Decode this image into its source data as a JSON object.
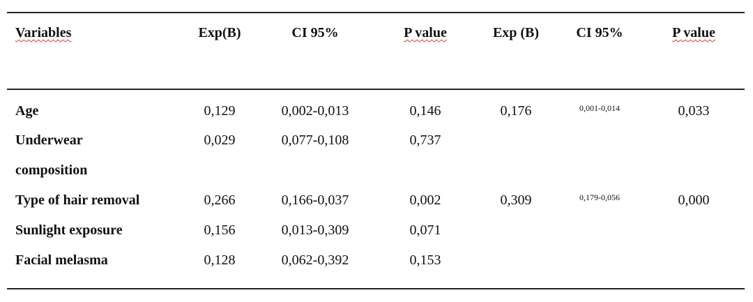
{
  "table": {
    "header": [
      "Variables",
      "Exp(B)",
      "CI 95%",
      "P value",
      "Exp (B)",
      "CI 95%",
      "P value"
    ],
    "rows": [
      [
        "Age",
        "0,129",
        "0,002-0,013",
        "0,146",
        "0,176",
        "0,001-0,014",
        "0,033"
      ],
      [
        "Underwear composition",
        "0,029",
        "0,077-0,108",
        "0,737",
        null,
        null,
        null
      ],
      [
        "Type of hair removal",
        "0,266",
        "0,166-0,037",
        "0,002",
        "0,309",
        "0,179-0,056",
        "0,000"
      ],
      [
        "Sunlight exposure",
        "0,156",
        "0,013-0,309",
        "0,071",
        null,
        null,
        null
      ],
      [
        "Facial melasma",
        "0,128",
        "0,062-0,392",
        "0,153",
        null,
        null,
        null
      ]
    ]
  }
}
